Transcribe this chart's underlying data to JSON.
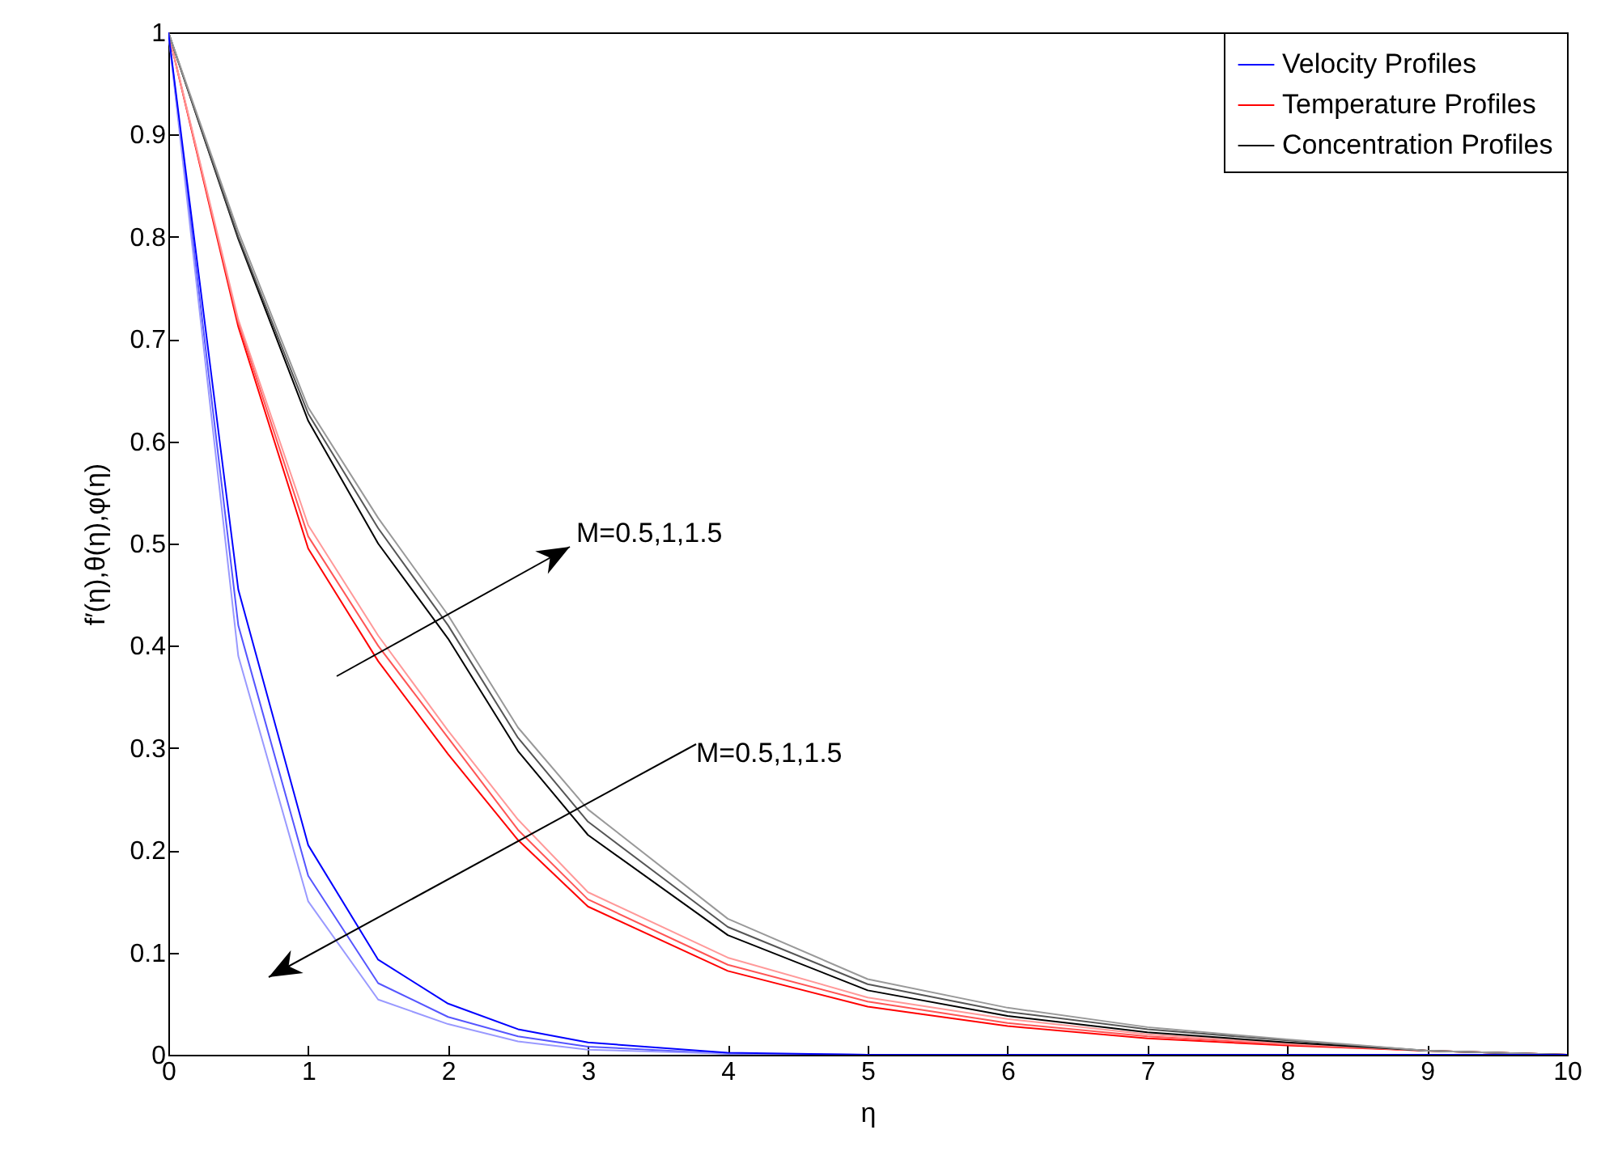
{
  "chart_data": {
    "type": "line",
    "xlabel": "η",
    "ylabel": "f′(η),θ(η),φ(η)",
    "x": [
      0,
      0.5,
      1,
      1.5,
      2,
      2.5,
      3,
      4,
      5,
      6,
      7,
      8,
      9,
      10
    ],
    "series": [
      {
        "name": "Velocity Profiles",
        "color": "#0000ff",
        "values": [
          1,
          0.455,
          0.205,
          0.093,
          0.05,
          0.025,
          0.012,
          0.002,
          0,
          0,
          0,
          0,
          0,
          0
        ]
      },
      {
        "color": "#5555ff",
        "values": [
          1,
          0.42,
          0.175,
          0.07,
          0.037,
          0.018,
          0.008,
          0.001,
          0,
          0,
          0,
          0,
          0,
          0
        ]
      },
      {
        "color": "#9999ff",
        "values": [
          1,
          0.39,
          0.15,
          0.054,
          0.03,
          0.013,
          0.005,
          0.001,
          0,
          0,
          0,
          0,
          0,
          0
        ]
      },
      {
        "name": "Temperature Profiles",
        "color": "#ff0000",
        "values": [
          1,
          0.712,
          0.495,
          0.385,
          0.294,
          0.21,
          0.145,
          0.082,
          0.047,
          0.028,
          0.016,
          0.009,
          0.004,
          0
        ]
      },
      {
        "color": "#ff5555",
        "values": [
          1,
          0.716,
          0.507,
          0.4,
          0.31,
          0.22,
          0.152,
          0.088,
          0.052,
          0.031,
          0.018,
          0.01,
          0.004,
          0
        ]
      },
      {
        "color": "#ff9999",
        "values": [
          1,
          0.719,
          0.518,
          0.41,
          0.317,
          0.23,
          0.159,
          0.095,
          0.056,
          0.035,
          0.02,
          0.011,
          0.004,
          0
        ]
      },
      {
        "name": "Concentration Profiles",
        "color": "#000000",
        "values": [
          1,
          0.798,
          0.62,
          0.5,
          0.407,
          0.297,
          0.215,
          0.117,
          0.063,
          0.038,
          0.022,
          0.012,
          0.004,
          0
        ]
      },
      {
        "color": "#555555",
        "values": [
          1,
          0.8,
          0.627,
          0.515,
          0.42,
          0.31,
          0.228,
          0.125,
          0.069,
          0.042,
          0.025,
          0.014,
          0.004,
          0
        ]
      },
      {
        "color": "#999999",
        "values": [
          1,
          0.805,
          0.633,
          0.525,
          0.43,
          0.32,
          0.24,
          0.133,
          0.074,
          0.046,
          0.027,
          0.015,
          0.004,
          0
        ]
      }
    ],
    "annotations": [
      "M=0.5,1,1.5",
      "M=0.5,1,1.5"
    ],
    "xlim": [
      0,
      10
    ],
    "ylim": [
      0,
      1
    ],
    "xticks": [
      0,
      1,
      2,
      3,
      4,
      5,
      6,
      7,
      8,
      9,
      10
    ],
    "yticks": [
      0,
      0.1,
      0.2,
      0.3,
      0.4,
      0.5,
      0.6,
      0.7,
      0.8,
      0.9,
      1
    ],
    "grid": false,
    "legend": "top right",
    "line_style": "solid",
    "marker": "none"
  }
}
